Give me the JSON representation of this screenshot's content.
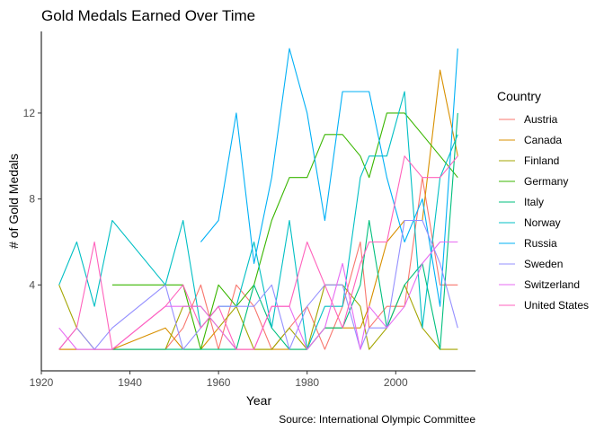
{
  "chart_data": {
    "type": "line",
    "title": "Gold Medals Earned Over Time",
    "xlabel": "Year",
    "ylabel": "# of Gold Medals",
    "caption": "Source: International Olympic Committee",
    "xlim": [
      1920,
      2018
    ],
    "ylim": [
      0,
      15.8
    ],
    "xticks": [
      1920,
      1940,
      1960,
      1980,
      2000
    ],
    "yticks": [
      4,
      8,
      12
    ],
    "grid": false,
    "legend": {
      "title": "Country",
      "placement": "right"
    },
    "series": [
      {
        "name": "Austria",
        "color": "#F8766D",
        "x": [
          1924,
          1928,
          1932,
          1936,
          1948,
          1952,
          1956,
          1960,
          1964,
          1968,
          1972,
          1976,
          1980,
          1984,
          1988,
          1992,
          1994,
          1998,
          2002,
          2006,
          2010,
          2014
        ],
        "y": [
          1,
          1,
          1,
          1,
          1,
          2,
          4,
          1,
          4,
          3,
          1,
          2,
          3,
          1,
          3,
          6,
          2,
          3,
          3,
          9,
          4,
          4
        ]
      },
      {
        "name": "Canada",
        "color": "#D89000",
        "x": [
          1924,
          1928,
          1932,
          1936,
          1948,
          1952,
          1956,
          1960,
          1964,
          1968,
          1972,
          1976,
          1980,
          1984,
          1988,
          1992,
          1994,
          1998,
          2002,
          2006,
          2010,
          2014
        ],
        "y": [
          1,
          1,
          1,
          1,
          2,
          1,
          1,
          2,
          1,
          1,
          1,
          1,
          1,
          2,
          2,
          2,
          3,
          6,
          7,
          7,
          14,
          10
        ]
      },
      {
        "name": "Finland",
        "color": "#A3A500",
        "x": [
          1924,
          1928,
          1932,
          1936,
          1948,
          1952,
          1956,
          1960,
          1964,
          1968,
          1972,
          1976,
          1980,
          1984,
          1988,
          1992,
          1994,
          1998,
          2002,
          2006,
          2010,
          2014
        ],
        "y": [
          4,
          2,
          1,
          1,
          1,
          3,
          3,
          2,
          3,
          1,
          1,
          2,
          1,
          4,
          4,
          3,
          1,
          2,
          4,
          2,
          1,
          1
        ]
      },
      {
        "name": "Germany",
        "color": "#39B600",
        "x": [
          1936,
          1952,
          1956,
          1960,
          1964,
          1968,
          1972,
          1976,
          1980,
          1984,
          1988,
          1992,
          1994,
          1998,
          2002,
          2006,
          2010,
          2014
        ],
        "y": [
          4,
          4,
          1,
          4,
          3,
          4,
          7,
          9,
          9,
          11,
          11,
          10,
          9,
          12,
          12,
          11,
          10,
          9
        ]
      },
      {
        "name": "Italy",
        "color": "#00BF7D",
        "x": [
          1936,
          1948,
          1952,
          1956,
          1960,
          1964,
          1968,
          1972,
          1976,
          1980,
          1984,
          1988,
          1992,
          1994,
          1998,
          2002,
          2006,
          2010,
          2014
        ],
        "y": [
          1,
          1,
          1,
          1,
          1,
          1,
          4,
          2,
          1,
          1,
          2,
          2,
          4,
          7,
          2,
          4,
          5,
          1,
          12
        ]
      },
      {
        "name": "Norway",
        "color": "#00BFC4",
        "x": [
          1924,
          1928,
          1932,
          1936,
          1948,
          1952,
          1956,
          1960,
          1964,
          1968,
          1972,
          1976,
          1980,
          1984,
          1988,
          1992,
          1994,
          1998,
          2002,
          2006,
          2010,
          2014
        ],
        "y": [
          4,
          6,
          3,
          7,
          4,
          7,
          2,
          3,
          3,
          6,
          2,
          7,
          1,
          3,
          3,
          9,
          10,
          10,
          13,
          2,
          9,
          11
        ]
      },
      {
        "name": "Russia",
        "color": "#00B0F6",
        "x": [
          1956,
          1960,
          1964,
          1968,
          1972,
          1976,
          1980,
          1984,
          1988,
          1992,
          1994,
          1998,
          2002,
          2006,
          2010,
          2014
        ],
        "y": [
          6,
          7,
          12,
          5,
          9,
          15,
          12,
          7,
          13,
          13,
          13,
          9,
          6,
          8,
          3,
          15
        ]
      },
      {
        "name": "Sweden",
        "color": "#9590FF",
        "x": [
          1924,
          1928,
          1932,
          1936,
          1948,
          1952,
          1956,
          1960,
          1964,
          1968,
          1972,
          1976,
          1980,
          1984,
          1988,
          1992,
          1994,
          1998,
          2002,
          2006,
          2010,
          2014
        ],
        "y": [
          1,
          2,
          1,
          2,
          4,
          1,
          2,
          3,
          3,
          3,
          4,
          1,
          3,
          4,
          4,
          1,
          2,
          2,
          7,
          7,
          5,
          2
        ]
      },
      {
        "name": "Switzerland",
        "color": "#E76BF3",
        "x": [
          1924,
          1928,
          1932,
          1936,
          1948,
          1952,
          1956,
          1960,
          1964,
          1968,
          1972,
          1976,
          1980,
          1984,
          1988,
          1992,
          1994,
          1998,
          2002,
          2006,
          2010,
          2014
        ],
        "y": [
          2,
          1,
          1,
          1,
          3,
          3,
          3,
          2,
          1,
          1,
          3,
          3,
          1,
          2,
          5,
          1,
          3,
          2,
          3,
          5,
          6,
          6
        ]
      },
      {
        "name": "United States",
        "color": "#FF62BC",
        "x": [
          1924,
          1928,
          1932,
          1936,
          1948,
          1952,
          1956,
          1960,
          1964,
          1968,
          1972,
          1976,
          1980,
          1984,
          1988,
          1992,
          1994,
          1998,
          2002,
          2006,
          2010,
          2014
        ],
        "y": [
          1,
          2,
          6,
          1,
          3,
          4,
          2,
          3,
          1,
          1,
          3,
          3,
          6,
          4,
          2,
          5,
          6,
          6,
          10,
          9,
          9,
          10
        ]
      }
    ]
  }
}
